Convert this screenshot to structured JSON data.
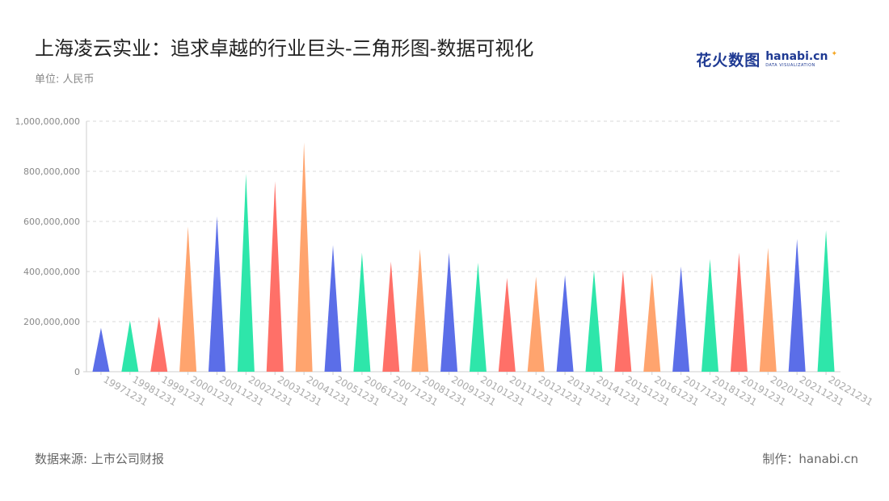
{
  "header": {
    "title": "上海凌云实业：追求卓越的行业巨头-三角形图-数据可视化",
    "unit": "单位: 人民币"
  },
  "footer": {
    "source": "数据来源: 上市公司财报",
    "credit": "制作：hanabi.cn"
  },
  "logo": {
    "cn_text": "花火数图",
    "en_text": "hanabi.cn",
    "sub_text": "DATA VISUALIZATION",
    "accent_color": "#1f3a93"
  },
  "chart_data": {
    "type": "bar",
    "mark_shape": "triangle",
    "categories": [
      "19971231",
      "19981231",
      "19991231",
      "20001231",
      "20011231",
      "20021231",
      "20031231",
      "20041231",
      "20051231",
      "20061231",
      "20071231",
      "20081231",
      "20091231",
      "20101231",
      "20111231",
      "20121231",
      "20131231",
      "20141231",
      "20151231",
      "20161231",
      "20171231",
      "20181231",
      "20191231",
      "20201231",
      "20211231",
      "20221231"
    ],
    "values": [
      175000000,
      205000000,
      220000000,
      580000000,
      620000000,
      790000000,
      760000000,
      915000000,
      505000000,
      475000000,
      440000000,
      490000000,
      475000000,
      435000000,
      375000000,
      380000000,
      385000000,
      405000000,
      405000000,
      395000000,
      420000000,
      450000000,
      475000000,
      495000000,
      530000000,
      565000000
    ],
    "colors": [
      "#5b6ee8",
      "#2ee6aa",
      "#ff7068",
      "#ffa46e"
    ],
    "y_ticks": [
      "0",
      "200,000,000",
      "400,000,000",
      "600,000,000",
      "800,000,000",
      "1,000,000,000"
    ],
    "ylim": [
      0,
      1000000000
    ],
    "grid": true,
    "legend": "none"
  }
}
